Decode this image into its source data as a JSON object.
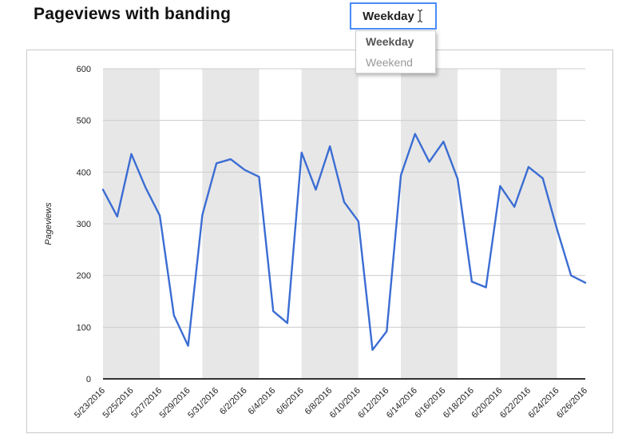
{
  "page_title": "Pageviews with banding",
  "dropdown": {
    "value": "Weekday",
    "options": [
      "Weekday",
      "Weekend"
    ],
    "selected_index": 0
  },
  "colors": {
    "accent_border": "#4a8cf7",
    "line": "#3b6dd3",
    "band": "#e7e7e7",
    "grid": "#cccccc",
    "axis": "#333333",
    "tick_text": "#222222"
  },
  "chart_data": {
    "type": "line",
    "title": "Pageviews with banding",
    "xlabel": "",
    "ylabel": "Pageviews",
    "ylim": [
      0,
      600
    ],
    "yticks": [
      0,
      100,
      200,
      300,
      400,
      500,
      600
    ],
    "grid": true,
    "legend_position": "none",
    "banding": {
      "meaning": "weekday-bands (Mon-Fri shaded)",
      "color": "#e7e7e7",
      "day_index_ranges": [
        [
          0,
          4
        ],
        [
          7,
          11
        ],
        [
          14,
          18
        ],
        [
          21,
          25
        ],
        [
          28,
          32
        ]
      ]
    },
    "x_tick_labels": [
      "5/23/2016",
      "5/25/2016",
      "5/27/2016",
      "5/29/2016",
      "5/31/2016",
      "6/2/2016",
      "6/4/2016",
      "6/6/2016",
      "6/8/2016",
      "6/10/2016",
      "6/12/2016",
      "6/14/2016",
      "6/16/2016",
      "6/18/2016",
      "6/20/2016",
      "6/22/2016",
      "6/24/2016",
      "6/26/2016"
    ],
    "x": [
      "5/23/2016",
      "5/24/2016",
      "5/25/2016",
      "5/26/2016",
      "5/27/2016",
      "5/28/2016",
      "5/29/2016",
      "5/30/2016",
      "5/31/2016",
      "6/1/2016",
      "6/2/2016",
      "6/3/2016",
      "6/4/2016",
      "6/5/2016",
      "6/6/2016",
      "6/7/2016",
      "6/8/2016",
      "6/9/2016",
      "6/10/2016",
      "6/11/2016",
      "6/12/2016",
      "6/13/2016",
      "6/14/2016",
      "6/15/2016",
      "6/16/2016",
      "6/17/2016",
      "6/18/2016",
      "6/19/2016",
      "6/20/2016",
      "6/21/2016",
      "6/22/2016",
      "6/23/2016",
      "6/24/2016",
      "6/25/2016",
      "6/26/2016"
    ],
    "series": [
      {
        "name": "Pageviews",
        "color": "#3b6dd3",
        "values": [
          366,
          314,
          435,
          370,
          316,
          123,
          64,
          317,
          417,
          425,
          404,
          391,
          131,
          108,
          438,
          366,
          450,
          342,
          305,
          56,
          92,
          394,
          474,
          420,
          459,
          387,
          188,
          177,
          373,
          333,
          410,
          388,
          290,
          200,
          186
        ]
      }
    ]
  }
}
